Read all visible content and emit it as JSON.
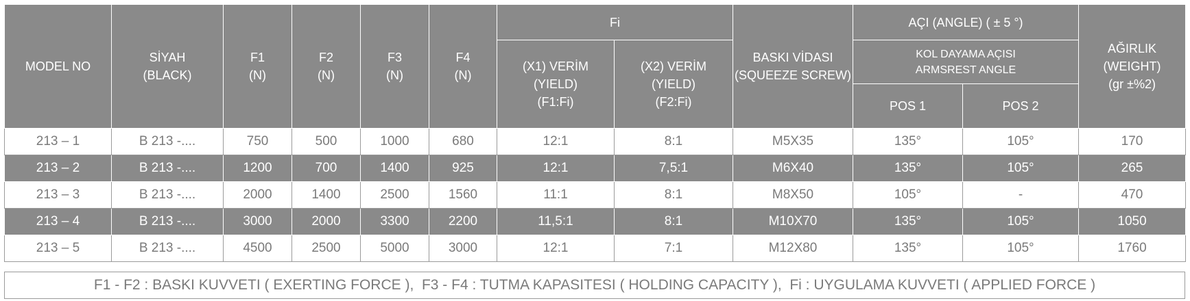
{
  "table": {
    "header": {
      "model": "MODEL NO",
      "black": "SİYAH\n(BLACK)",
      "f1": "F1\n(N)",
      "f2": "F2\n(N)",
      "f3": "F3\n(N)",
      "f4": "F4\n(N)",
      "fi": "Fi",
      "x1": "(X1) VERİM\n(YIELD)\n(F1:Fi)",
      "x2": "(X2) VERİM\n(YIELD)\n(F2:Fi)",
      "screw": "BASKI VİDASI\n(SQUEEZE SCREW)",
      "angle": "AÇI (ANGLE) ( ± 5 °)",
      "armrest": "KOL DAYAMA AÇISI\nARMSREST ANGLE",
      "pos1": "POS 1",
      "pos2": "POS 2",
      "weight": "AĞIRLIK\n(WEIGHT)\n(gr ±%2)"
    },
    "rows": [
      [
        "213 – 1",
        "B 213 -....",
        "750",
        "500",
        "1000",
        "680",
        "12:1",
        "8:1",
        "M5X35",
        "135°",
        "105°",
        "170"
      ],
      [
        "213 – 2",
        "B 213 -....",
        "1200",
        "700",
        "1400",
        "925",
        "12:1",
        "7,5:1",
        "M6X40",
        "135°",
        "105°",
        "265"
      ],
      [
        "213 – 3",
        "B 213 -....",
        "2000",
        "1400",
        "2500",
        "1560",
        "11:1",
        "8:1",
        "M8X50",
        "105°",
        "-",
        "470"
      ],
      [
        "213 – 4",
        "B 213 -....",
        "3000",
        "2000",
        "3300",
        "2200",
        "11,5:1",
        "8:1",
        "M10X70",
        "135°",
        "105°",
        "1050"
      ],
      [
        "213 – 5",
        "B 213 -....",
        "4500",
        "2500",
        "5000",
        "3000",
        "12:1",
        "7:1",
        "M12X80",
        "135°",
        "105°",
        "1760"
      ]
    ],
    "note": "F1 - F2 : BASKI KUVVETI ( EXERTING FORCE ),  F3 - F4 : TUTMA KAPASITESI ( HOLDING CAPACITY ),  Fi : UYGULAMA KUVVETI ( APPLIED FORCE )"
  }
}
